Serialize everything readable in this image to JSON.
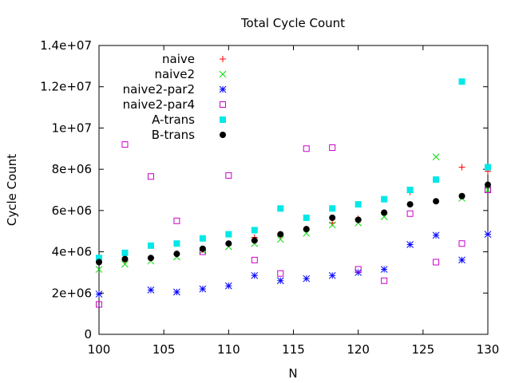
{
  "chart_data": {
    "type": "scatter",
    "title": "Total Cycle Count",
    "xlabel": "N",
    "ylabel": "Cycle Count",
    "xlim": [
      100,
      130
    ],
    "ylim": [
      0,
      14000000
    ],
    "x_ticks": [
      100,
      105,
      110,
      115,
      120,
      125,
      130
    ],
    "x_tick_labels": [
      "100",
      "105",
      "110",
      "115",
      "120",
      "125",
      "130"
    ],
    "y_ticks": [
      0,
      2000000,
      4000000,
      6000000,
      8000000,
      10000000,
      12000000,
      14000000
    ],
    "y_tick_labels": [
      "0",
      "2e+06",
      "4e+06",
      "6e+06",
      "8e+06",
      "1e+07",
      "1.2e+07",
      "1.4e+07"
    ],
    "grid": false,
    "legend_position": "top-left",
    "x": [
      100,
      102,
      104,
      106,
      108,
      110,
      112,
      114,
      116,
      118,
      120,
      122,
      124,
      126,
      128,
      130
    ],
    "series": [
      {
        "name": "naive",
        "marker": "plus",
        "color": "#ff0000",
        "values": [
          3500000,
          3600000,
          3700000,
          3900000,
          4100000,
          4400000,
          4700000,
          4800000,
          5100000,
          5400000,
          5600000,
          5900000,
          6900000,
          7500000,
          8100000,
          7900000
        ]
      },
      {
        "name": "naive2",
        "marker": "cross",
        "color": "#00dd00",
        "values": [
          3150000,
          3400000,
          3550000,
          3750000,
          4050000,
          4250000,
          4400000,
          4600000,
          4900000,
          5300000,
          5400000,
          5700000,
          7000000,
          8600000,
          6600000,
          7000000
        ]
      },
      {
        "name": "naive2-par2",
        "marker": "star",
        "color": "#0000ff",
        "values": [
          1950000,
          null,
          2150000,
          2050000,
          2200000,
          2350000,
          2850000,
          2600000,
          2700000,
          2850000,
          3000000,
          3150000,
          4350000,
          4800000,
          3600000,
          4850000
        ]
      },
      {
        "name": "naive2-par4",
        "marker": "open-square",
        "color": "#cc00cc",
        "values": [
          1450000,
          9200000,
          7650000,
          5500000,
          4000000,
          7700000,
          3600000,
          2950000,
          9000000,
          9050000,
          3150000,
          2600000,
          5850000,
          3500000,
          4400000,
          7000000
        ]
      },
      {
        "name": "A-trans",
        "marker": "filled-square",
        "color": "#00e8e8",
        "values": [
          3700000,
          3950000,
          4300000,
          4400000,
          4650000,
          4850000,
          5050000,
          6100000,
          5650000,
          6100000,
          6300000,
          6550000,
          7000000,
          7500000,
          12250000,
          8100000
        ]
      },
      {
        "name": "B-trans",
        "marker": "filled-circle",
        "color": "#000000",
        "values": [
          3500000,
          3650000,
          3700000,
          3900000,
          4150000,
          4400000,
          4550000,
          4850000,
          5100000,
          5650000,
          5550000,
          5900000,
          6300000,
          6450000,
          6700000,
          7250000
        ]
      }
    ]
  }
}
